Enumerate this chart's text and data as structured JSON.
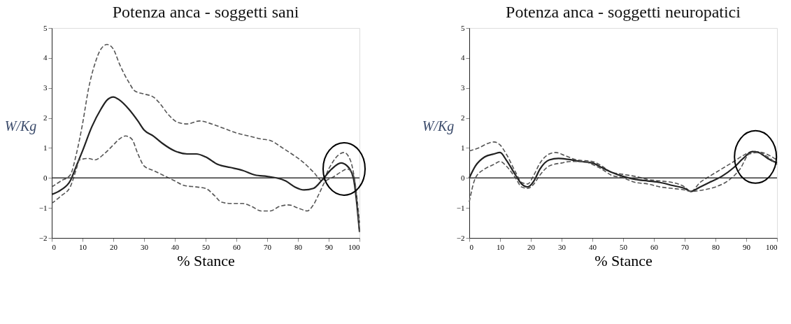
{
  "chart_data": [
    {
      "type": "line",
      "title": "Potenza anca - soggetti sani",
      "xlabel": "% Stance",
      "ylabel": "W/Kg",
      "xlim": [
        0,
        100
      ],
      "ylim": [
        -2,
        5
      ],
      "xticks": [
        0,
        10,
        20,
        30,
        40,
        50,
        60,
        70,
        80,
        90,
        100
      ],
      "yticks": [
        -2,
        -1,
        0,
        1,
        2,
        3,
        4,
        5
      ],
      "grid": false,
      "marker": "none",
      "ref_lines": [
        {
          "axis": "y",
          "value": 0,
          "color": "#333333",
          "line_style": "solid"
        }
      ],
      "series": [
        {
          "color": "#555555",
          "line_style": "dashed",
          "x": [
            0,
            3,
            6,
            8,
            10,
            12,
            14,
            16,
            18,
            20,
            22,
            25,
            27,
            30,
            33,
            35,
            38,
            41,
            44,
            48,
            52,
            56,
            60,
            64,
            68,
            71,
            75,
            78,
            82,
            85,
            88,
            90,
            93,
            95,
            97,
            99,
            100
          ],
          "values": [
            -0.3,
            -0.1,
            0.1,
            0.8,
            1.8,
            3.0,
            3.8,
            4.3,
            4.45,
            4.3,
            3.8,
            3.2,
            2.9,
            2.8,
            2.7,
            2.5,
            2.1,
            1.85,
            1.8,
            1.9,
            1.8,
            1.65,
            1.5,
            1.4,
            1.3,
            1.25,
            1.0,
            0.8,
            0.5,
            0.2,
            -0.1,
            0.3,
            0.75,
            0.85,
            0.6,
            -0.5,
            -1.5
          ]
        },
        {
          "color": "#222222",
          "line_style": "solid",
          "x": [
            0,
            3,
            6,
            8,
            10,
            13,
            16,
            18,
            20,
            22,
            25,
            28,
            30,
            33,
            36,
            40,
            44,
            47,
            50,
            54,
            58,
            62,
            66,
            70,
            73,
            76,
            79,
            82,
            85,
            88,
            91,
            94,
            96,
            98,
            100
          ],
          "values": [
            -0.55,
            -0.4,
            -0.1,
            0.4,
            0.9,
            1.7,
            2.3,
            2.6,
            2.7,
            2.6,
            2.3,
            1.9,
            1.6,
            1.4,
            1.15,
            0.9,
            0.8,
            0.8,
            0.7,
            0.45,
            0.35,
            0.25,
            0.1,
            0.05,
            0,
            -0.1,
            -0.3,
            -0.4,
            -0.35,
            -0.05,
            0.3,
            0.5,
            0.4,
            0,
            -1.8
          ]
        },
        {
          "color": "#555555",
          "line_style": "dashed",
          "x": [
            0,
            3,
            6,
            8,
            9,
            12,
            14,
            17,
            20,
            22,
            24,
            26,
            28,
            30,
            33,
            36,
            40,
            43,
            47,
            50,
            53,
            55,
            58,
            62,
            65,
            68,
            71,
            74,
            77,
            80,
            83,
            85,
            87,
            89,
            91,
            94,
            96,
            98,
            100
          ],
          "values": [
            -0.85,
            -0.6,
            -0.3,
            0.3,
            0.6,
            0.65,
            0.6,
            0.8,
            1.1,
            1.3,
            1.4,
            1.3,
            0.8,
            0.4,
            0.25,
            0.1,
            -0.1,
            -0.25,
            -0.3,
            -0.35,
            -0.6,
            -0.8,
            -0.85,
            -0.85,
            -0.95,
            -1.1,
            -1.1,
            -0.95,
            -0.9,
            -1.0,
            -1.1,
            -0.9,
            -0.5,
            -0.1,
            0,
            0.2,
            0.3,
            0.1,
            -1.8
          ]
        }
      ]
    },
    {
      "type": "line",
      "title": "Potenza anca - soggetti neuropatici",
      "xlabel": "% Stance",
      "ylabel": "W/Kg",
      "xlim": [
        0,
        100
      ],
      "ylim": [
        -2,
        5
      ],
      "xticks": [
        0,
        10,
        20,
        30,
        40,
        50,
        60,
        70,
        80,
        90,
        100
      ],
      "yticks": [
        -2,
        -1,
        0,
        1,
        2,
        3,
        4,
        5
      ],
      "grid": false,
      "marker": "none",
      "ref_lines": [
        {
          "axis": "y",
          "value": 0,
          "color": "#333333",
          "line_style": "solid"
        }
      ],
      "series": [
        {
          "color": "#555555",
          "line_style": "dashed",
          "x": [
            0,
            3,
            6,
            8,
            10,
            12,
            15,
            17,
            19,
            21,
            23,
            26,
            28,
            31,
            35,
            40,
            43,
            46,
            50,
            54,
            58,
            62,
            66,
            70,
            72,
            75,
            78,
            82,
            86,
            89,
            92,
            95,
            100
          ],
          "values": [
            0.9,
            1.0,
            1.15,
            1.2,
            1.1,
            0.8,
            0.2,
            -0.15,
            -0.2,
            0.1,
            0.5,
            0.8,
            0.85,
            0.75,
            0.6,
            0.55,
            0.4,
            0.2,
            0.12,
            0.05,
            -0.05,
            -0.1,
            -0.15,
            -0.3,
            -0.45,
            -0.15,
            0.05,
            0.3,
            0.55,
            0.75,
            0.88,
            0.85,
            0.6
          ]
        },
        {
          "color": "#222222",
          "line_style": "solid",
          "x": [
            0,
            2,
            5,
            8,
            10,
            12,
            15,
            17,
            19,
            21,
            23,
            26,
            29,
            32,
            36,
            40,
            43,
            46,
            50,
            54,
            58,
            62,
            66,
            70,
            72,
            75,
            78,
            82,
            86,
            89,
            92,
            94,
            97,
            100
          ],
          "values": [
            0,
            0.4,
            0.7,
            0.8,
            0.85,
            0.6,
            0.1,
            -0.2,
            -0.3,
            -0.1,
            0.3,
            0.6,
            0.65,
            0.62,
            0.55,
            0.5,
            0.35,
            0.2,
            0.05,
            -0.05,
            -0.1,
            -0.15,
            -0.25,
            -0.35,
            -0.45,
            -0.3,
            -0.15,
            0.05,
            0.35,
            0.65,
            0.88,
            0.85,
            0.65,
            0.5
          ]
        },
        {
          "color": "#555555",
          "line_style": "dashed",
          "x": [
            0,
            2,
            5,
            8,
            10,
            12,
            15,
            17,
            19,
            21,
            23,
            26,
            30,
            33,
            37,
            40,
            43,
            46,
            50,
            54,
            58,
            62,
            66,
            70,
            72,
            76,
            80,
            84,
            88,
            91,
            94,
            97,
            100
          ],
          "values": [
            -0.8,
            0,
            0.3,
            0.45,
            0.55,
            0.4,
            0,
            -0.3,
            -0.35,
            -0.2,
            0.1,
            0.4,
            0.5,
            0.55,
            0.55,
            0.45,
            0.3,
            0.1,
            0,
            -0.15,
            -0.2,
            -0.3,
            -0.35,
            -0.4,
            -0.45,
            -0.4,
            -0.3,
            -0.1,
            0.3,
            0.8,
            0.85,
            0.7,
            0.45
          ]
        }
      ]
    }
  ]
}
